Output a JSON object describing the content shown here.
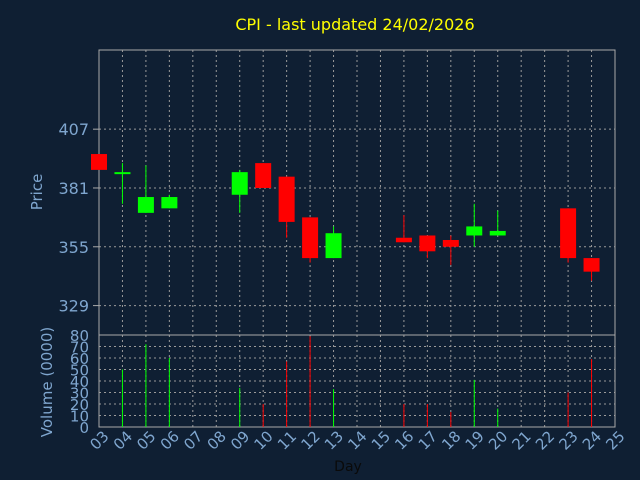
{
  "title": "CPI - last updated 24/02/2026",
  "colors": {
    "background": "#0f1f33",
    "title": "#ffff00",
    "axis_text": "#7fa6cf",
    "frame": "#aaaaaa",
    "grid": "#9a9a9a",
    "up": "#00ff00",
    "down": "#ff0000"
  },
  "chart_data": [
    {
      "type": "candlestick",
      "ylabel": "Price",
      "ylim": [
        316,
        442
      ],
      "yticks": [
        "329",
        "355",
        "381",
        "407"
      ],
      "grid": true,
      "candles": [
        {
          "x": "03",
          "open": 396,
          "close": 389,
          "high": 396,
          "low": 389
        },
        {
          "x": "04",
          "open": 388,
          "close": 388,
          "high": 392,
          "low": 374
        },
        {
          "x": "05",
          "open": 370,
          "close": 377,
          "high": 391,
          "low": 370
        },
        {
          "x": "06",
          "open": 372,
          "close": 377,
          "high": 378,
          "low": 372
        },
        {
          "x": "09",
          "open": 378,
          "close": 388,
          "high": 389,
          "low": 370
        },
        {
          "x": "10",
          "open": 392,
          "close": 381,
          "high": 392,
          "low": 381
        },
        {
          "x": "11",
          "open": 386,
          "close": 366,
          "high": 386,
          "low": 359
        },
        {
          "x": "12",
          "open": 368,
          "close": 350,
          "high": 368,
          "low": 348
        },
        {
          "x": "13",
          "open": 350,
          "close": 361,
          "high": 364,
          "low": 350
        },
        {
          "x": "16",
          "open": 359,
          "close": 357,
          "high": 369,
          "low": 357
        },
        {
          "x": "17",
          "open": 360,
          "close": 353,
          "high": 360,
          "low": 350
        },
        {
          "x": "18",
          "open": 358,
          "close": 355,
          "high": 360,
          "low": 347
        },
        {
          "x": "19",
          "open": 360,
          "close": 364,
          "high": 374,
          "low": 355
        },
        {
          "x": "20",
          "open": 360,
          "close": 362,
          "high": 371,
          "low": 360
        },
        {
          "x": "23",
          "open": 372,
          "close": 350,
          "high": 372,
          "low": 348
        },
        {
          "x": "24",
          "open": 350,
          "close": 344,
          "high": 350,
          "low": 340
        }
      ]
    },
    {
      "type": "bar",
      "xlabel": "Day",
      "ylabel": "Volume (0000)",
      "ylim": [
        0,
        80
      ],
      "yticks": [
        "0",
        "10",
        "20",
        "30",
        "40",
        "50",
        "60",
        "70",
        "80"
      ],
      "categories": [
        "03",
        "04",
        "05",
        "06",
        "07",
        "08",
        "09",
        "10",
        "11",
        "12",
        "13",
        "14",
        "15",
        "16",
        "17",
        "18",
        "19",
        "20",
        "21",
        "22",
        "23",
        "24",
        "25"
      ],
      "bars": [
        {
          "x": "04",
          "value": 50,
          "direction": "up"
        },
        {
          "x": "05",
          "value": 72,
          "direction": "up"
        },
        {
          "x": "06",
          "value": 60,
          "direction": "up"
        },
        {
          "x": "09",
          "value": 34,
          "direction": "up"
        },
        {
          "x": "10",
          "value": 20,
          "direction": "down"
        },
        {
          "x": "11",
          "value": 57,
          "direction": "down"
        },
        {
          "x": "12",
          "value": 79,
          "direction": "down"
        },
        {
          "x": "13",
          "value": 33,
          "direction": "up"
        },
        {
          "x": "16",
          "value": 20,
          "direction": "down"
        },
        {
          "x": "17",
          "value": 20,
          "direction": "down"
        },
        {
          "x": "18",
          "value": 13,
          "direction": "down"
        },
        {
          "x": "19",
          "value": 41,
          "direction": "up"
        },
        {
          "x": "20",
          "value": 16,
          "direction": "up"
        },
        {
          "x": "23",
          "value": 30,
          "direction": "down"
        },
        {
          "x": "24",
          "value": 59,
          "direction": "down"
        }
      ]
    }
  ]
}
